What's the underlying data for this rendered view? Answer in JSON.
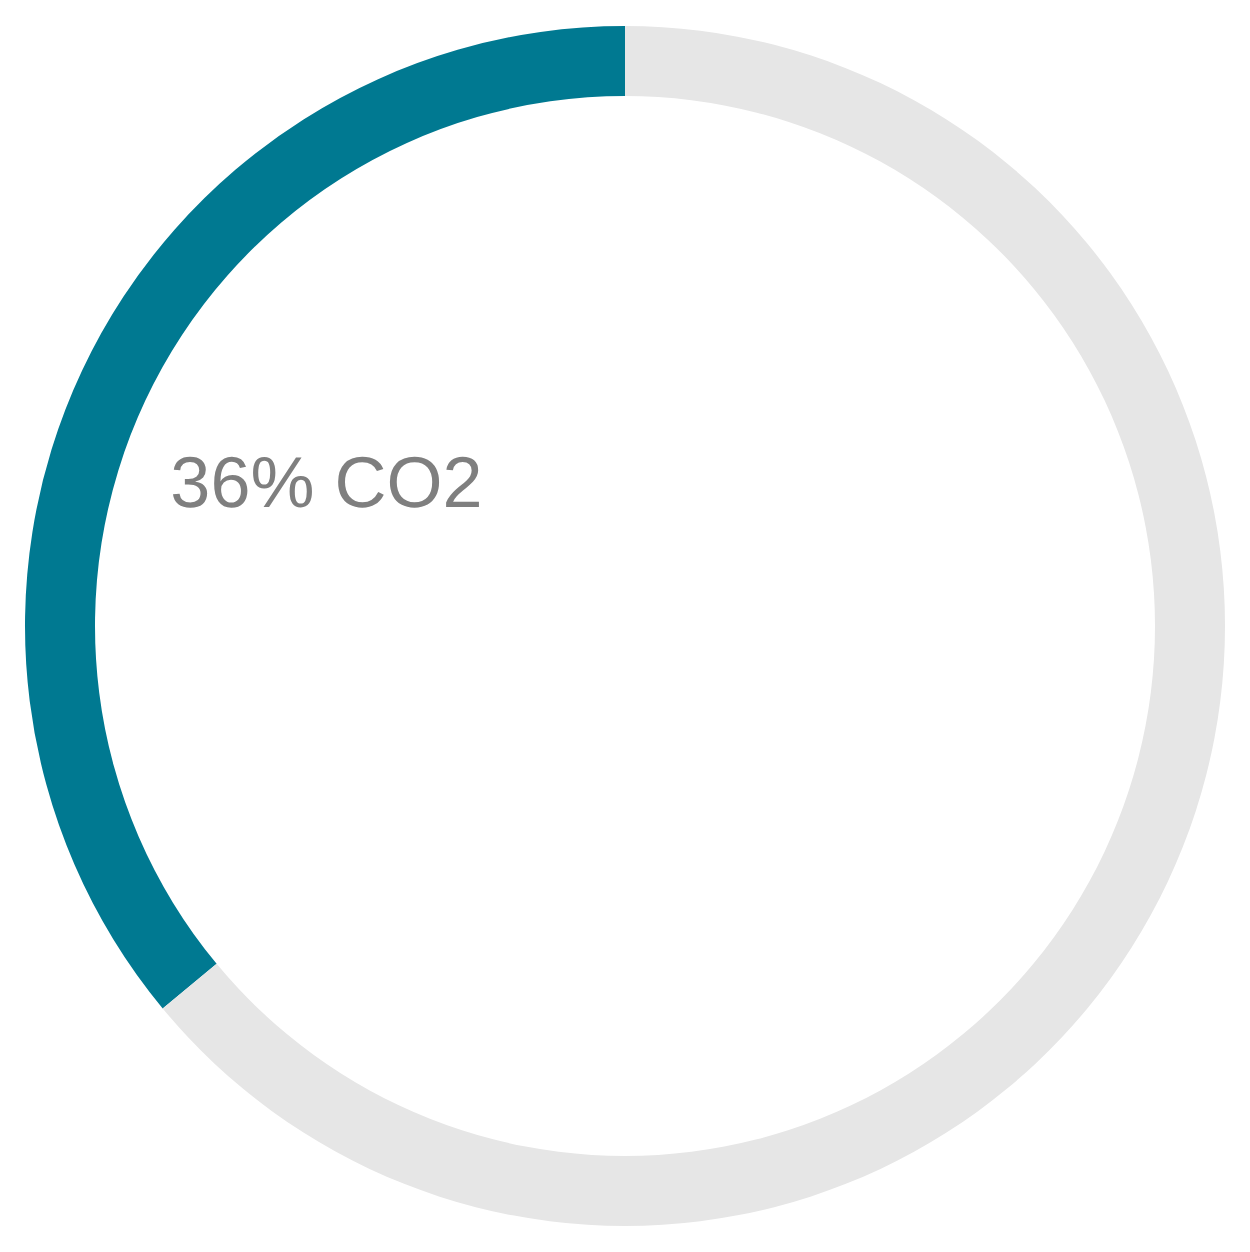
{
  "chart_data": {
    "type": "donut",
    "categories": [
      "36% CO2",
      null
    ],
    "values": [
      36,
      64
    ],
    "colors": [
      "#007991",
      "#e6e6e6"
    ]
  }
}
